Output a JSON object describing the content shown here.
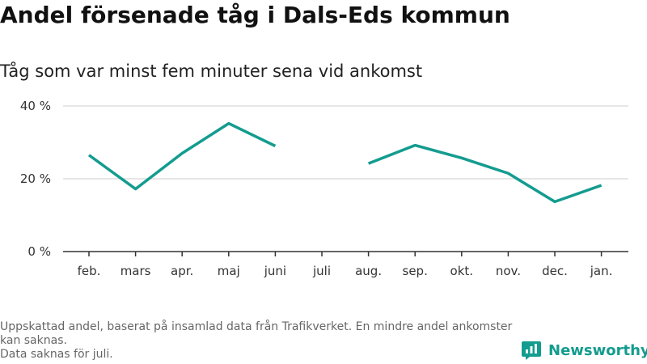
{
  "title": "Andel försenade tåg i Dals-Eds kommun",
  "subtitle": "Tåg som var minst fem minuter sena vid ankomst",
  "footnote": {
    "line1": "Uppskattad andel, baserat på insamlad data från Trafikverket. En mindre andel ankomster kan saknas.",
    "line2": "Data saknas för juli."
  },
  "brand": {
    "name": "Newsworthy",
    "color": "#139c8f",
    "icon": "newsworthy-logo-icon"
  },
  "chart_data": {
    "type": "line",
    "title": "Andel försenade tåg i Dals-Eds kommun",
    "subtitle": "Tåg som var minst fem minuter sena vid ankomst",
    "xlabel": "",
    "ylabel": "",
    "categories": [
      "feb.",
      "mars",
      "apr.",
      "maj",
      "juni",
      "juli",
      "aug.",
      "sep.",
      "okt.",
      "nov.",
      "dec.",
      "jan."
    ],
    "series": [
      {
        "values": [
          26.5,
          17.2,
          27.0,
          35.2,
          29.0,
          null,
          24.2,
          29.2,
          25.7,
          21.5,
          13.7,
          18.2
        ],
        "color": "#139c8f"
      }
    ],
    "ylim": [
      0,
      40
    ],
    "yticks": [
      0,
      20,
      40
    ],
    "ytick_labels": [
      "0 %",
      "20 %",
      "40 %"
    ],
    "grid": true,
    "legend": "none"
  }
}
